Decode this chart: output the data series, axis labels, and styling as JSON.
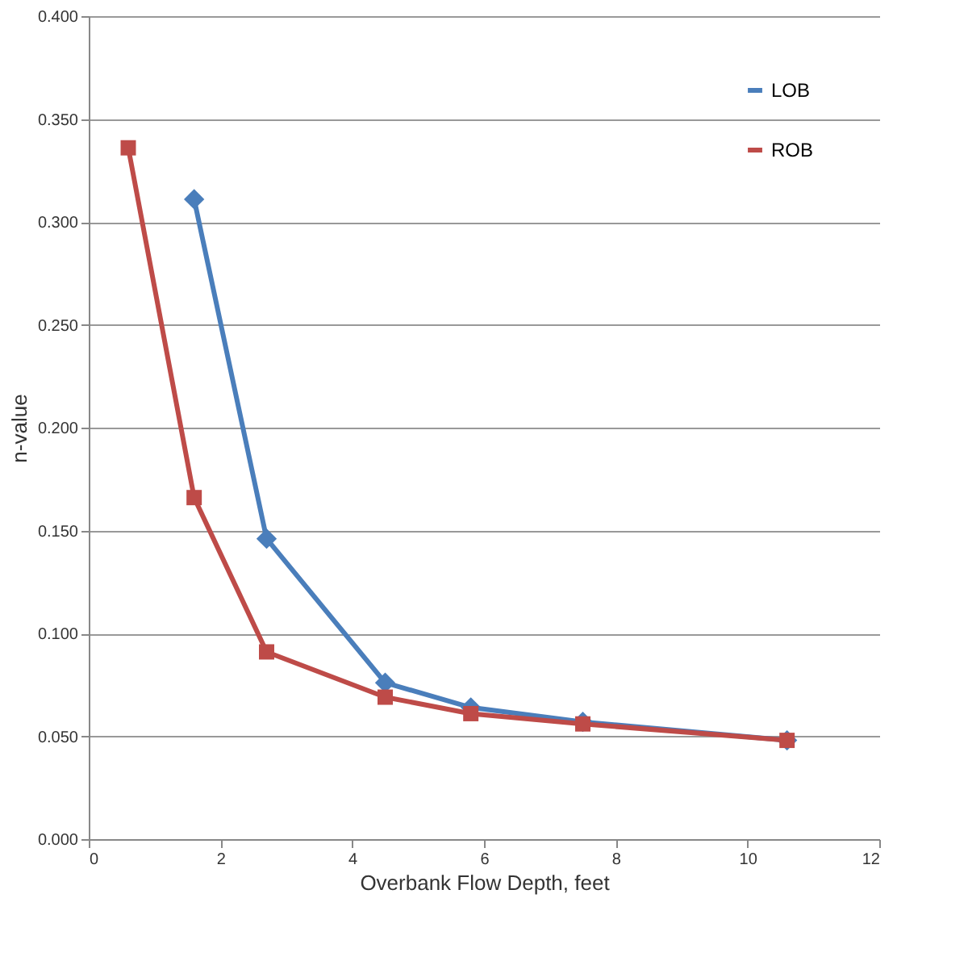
{
  "chart_data": {
    "type": "line",
    "xlabel": "Overbank Flow Depth, feet",
    "ylabel": "n-value",
    "xlim": [
      0,
      12
    ],
    "xticks": [
      0,
      2,
      4,
      6,
      8,
      10,
      12
    ],
    "ylim": [
      0,
      0.4
    ],
    "yticks": [
      {
        "value": 0,
        "label": "0.000"
      },
      {
        "value": 0.05,
        "label": "0.050"
      },
      {
        "value": 0.1,
        "label": "0.100"
      },
      {
        "value": 0.15,
        "label": "0.150"
      },
      {
        "value": 0.2,
        "label": "0.200"
      },
      {
        "value": 0.25,
        "label": "0.250"
      },
      {
        "value": 0.3,
        "label": "0.300"
      },
      {
        "value": 0.35,
        "label": "0.350"
      },
      {
        "value": 0.4,
        "label": "0.400"
      }
    ],
    "grid": "y",
    "legend": "top right",
    "line_style": "solid",
    "series": [
      {
        "name": "LOB",
        "color": "#4a7ebb",
        "marker": "diamond",
        "x": [
          1.6,
          2.7,
          4.5,
          5.8,
          7.5,
          10.6
        ],
        "values": [
          0.311,
          0.146,
          0.076,
          0.064,
          0.057,
          0.048
        ]
      },
      {
        "name": "ROB",
        "color": "#be4b48",
        "marker": "square",
        "x": [
          0.6,
          1.6,
          2.7,
          4.5,
          5.8,
          7.5,
          10.6
        ],
        "values": [
          0.336,
          0.166,
          0.091,
          0.069,
          0.061,
          0.056,
          0.048
        ]
      }
    ]
  }
}
